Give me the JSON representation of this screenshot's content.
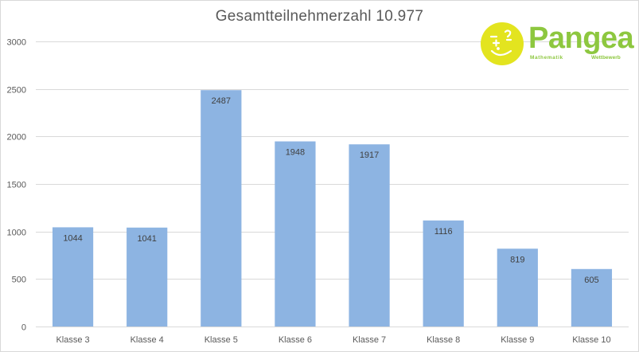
{
  "chart_data": {
    "type": "bar",
    "title": "Gesamtteilnehmerzahl 10.977",
    "categories": [
      "Klasse 3",
      "Klasse 4",
      "Klasse 5",
      "Klasse 6",
      "Klasse 7",
      "Klasse 8",
      "Klasse 9",
      "Klasse 10"
    ],
    "values": [
      1044,
      1041,
      2487,
      1948,
      1917,
      1116,
      819,
      605
    ],
    "ylim": [
      0,
      3000
    ],
    "yticks": [
      0,
      500,
      1000,
      1500,
      2000,
      2500,
      3000
    ],
    "grid": true,
    "bar_color": "#8db4e2",
    "data_labels": true
  },
  "logo": {
    "name": "Pangea",
    "sub_left": "Mathematik",
    "sub_right": "Wettbewerb",
    "circle_color": "#e3e41f",
    "text_color": "#8dc73f"
  }
}
